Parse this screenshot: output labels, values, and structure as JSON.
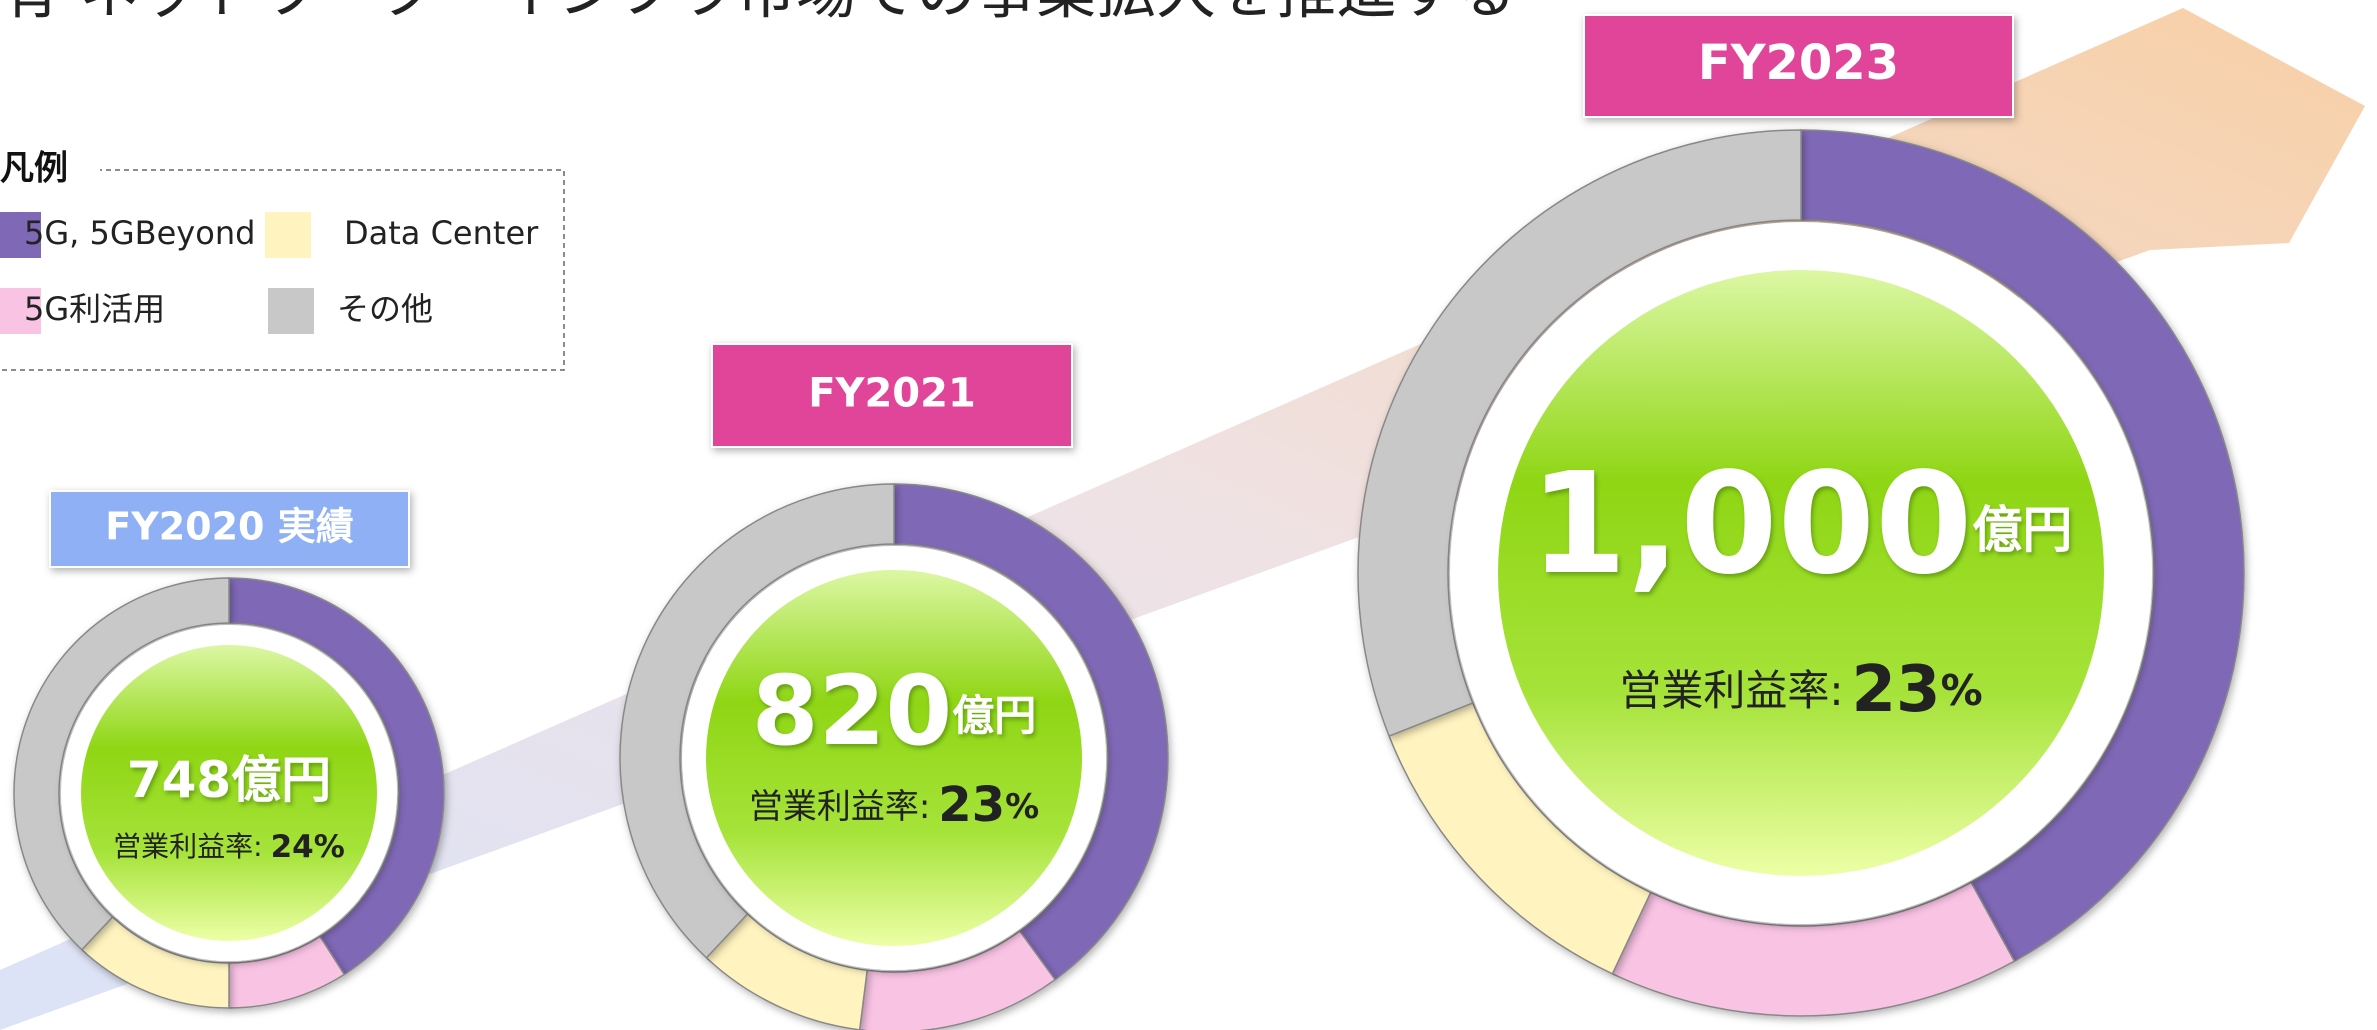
{
  "title": "有 ネットワーク・インフラ市場での事業拡大を推進する",
  "legend": {
    "title": "凡例",
    "items": [
      {
        "name": "5G, 5GBeyond",
        "color": "#7f68b6"
      },
      {
        "name": "Data Center",
        "color": "#fff4c0"
      },
      {
        "name": "5G利活用",
        "color": "#f9c3e4"
      },
      {
        "name": "その他",
        "color": "#c8c8c8"
      }
    ]
  },
  "chart_data": [
    {
      "type": "pie",
      "donut": true,
      "label": "FY2020 実績",
      "label_color": "#8fb0f5",
      "values": [
        41,
        12,
        9,
        38
      ],
      "center_value": 748,
      "center_unit": "億円",
      "margin_label": "営業利益率:",
      "margin": 24,
      "margin_unit": "%"
    },
    {
      "type": "pie",
      "donut": true,
      "label": "FY2021",
      "label_color": "#e0449a",
      "values": [
        40,
        10,
        12,
        38
      ],
      "center_value": 820,
      "center_unit": "億円",
      "margin_label": "営業利益率:",
      "margin": 23,
      "margin_unit": "%"
    },
    {
      "type": "pie",
      "donut": true,
      "label": "FY2023",
      "label_color": "#e0449a",
      "values": [
        42,
        12,
        15,
        31
      ],
      "center_value": 1000,
      "center_value_label": "1,000",
      "center_unit": "億円",
      "margin_label": "営業利益率:",
      "margin": 23,
      "margin_unit": "%"
    }
  ]
}
